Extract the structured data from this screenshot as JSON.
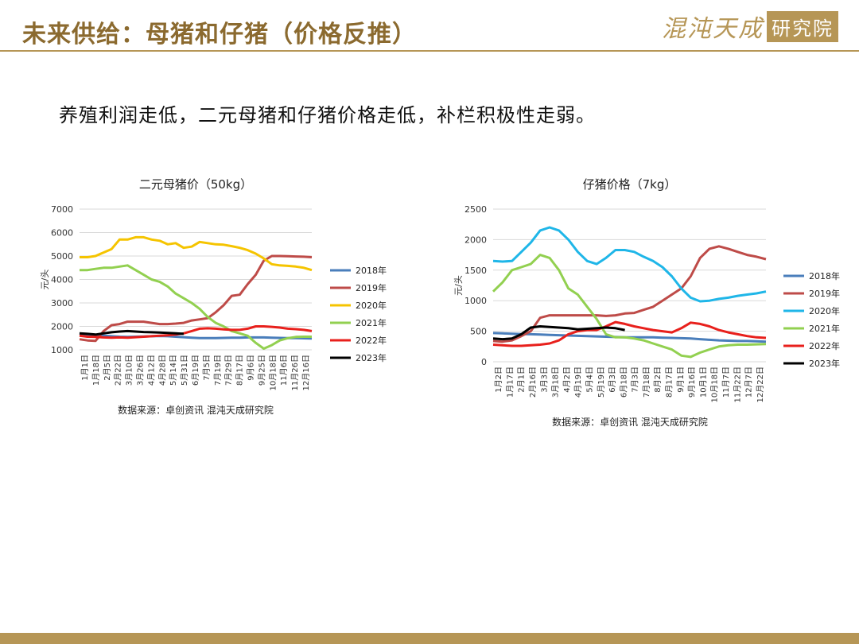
{
  "header": {
    "title": "未来供给：母猪和仔猪（价格反推）",
    "logo_text": "混沌天成",
    "logo_box_text": "研究院"
  },
  "subtitle": "养殖利润走低，二元母猪和仔猪价格走低，补栏积极性走弱。",
  "colors": {
    "accent": "#b69656",
    "title": "#8b6a2f",
    "s2018": "#4a7ebb",
    "s2019": "#be4b48",
    "s2020": "#f5c400",
    "s2021": "#92d050",
    "s2022": "#e8201c",
    "s2023": "#000000",
    "s2020_right": "#1fb6e8"
  },
  "chart_data": [
    {
      "type": "line",
      "title": "二元母猪价（50kg）",
      "ylabel": "元/头",
      "ylim": [
        1000,
        7000
      ],
      "yticks": [
        1000,
        2000,
        3000,
        4000,
        5000,
        6000,
        7000
      ],
      "xlabels": [
        "1月1日",
        "1月18日",
        "2月5日",
        "2月22日",
        "3月10日",
        "3月26日",
        "4月12日",
        "4月28日",
        "5月14日",
        "5月31日",
        "6月19日",
        "7月5日",
        "7月19日",
        "7月29日",
        "8月17日",
        "9月6日",
        "9月25日",
        "10月18日",
        "11月6日",
        "11月26日",
        "12月16日"
      ],
      "legend_position": "right",
      "source": "数据来源：卓创资讯 混沌天成研究院",
      "series": [
        {
          "name": "2018年",
          "color": "#4a7ebb",
          "values": [
            1700,
            1650,
            1620,
            1600,
            1580,
            1560,
            1550,
            1560,
            1570,
            1580,
            1590,
            1580,
            1560,
            1540,
            1520,
            1500,
            1500,
            1500,
            1510,
            1520,
            1520,
            1530,
            1530,
            1530,
            1520,
            1510,
            1500,
            1500,
            1490,
            1480
          ]
        },
        {
          "name": "2019年",
          "color": "#be4b48",
          "values": [
            1450,
            1400,
            1380,
            1800,
            2050,
            2100,
            2200,
            2200,
            2200,
            2150,
            2100,
            2100,
            2120,
            2150,
            2250,
            2300,
            2350,
            2600,
            2900,
            3300,
            3350,
            3800,
            4200,
            4800,
            5000,
            5000,
            4990,
            4980,
            4970,
            4950
          ]
        },
        {
          "name": "2020年",
          "color": "#f5c400",
          "values": [
            4950,
            4950,
            5000,
            5150,
            5300,
            5700,
            5700,
            5800,
            5800,
            5700,
            5650,
            5500,
            5550,
            5350,
            5400,
            5600,
            5550,
            5500,
            5480,
            5420,
            5350,
            5250,
            5100,
            4900,
            4650,
            4600,
            4580,
            4550,
            4500,
            4400
          ]
        },
        {
          "name": "2021年",
          "color": "#92d050",
          "values": [
            4400,
            4400,
            4450,
            4500,
            4500,
            4550,
            4600,
            4400,
            4200,
            4000,
            3900,
            3700,
            3400,
            3200,
            3000,
            2750,
            2400,
            2150,
            2000,
            1800,
            1700,
            1600,
            1300,
            1050,
            1200,
            1400,
            1500,
            1550,
            1560,
            1560
          ]
        },
        {
          "name": "2022年",
          "color": "#e8201c",
          "values": [
            1600,
            1560,
            1550,
            1530,
            1520,
            1530,
            1520,
            1540,
            1560,
            1580,
            1600,
            1620,
            1650,
            1700,
            1800,
            1900,
            1920,
            1900,
            1870,
            1850,
            1850,
            1900,
            2000,
            2000,
            1980,
            1950,
            1900,
            1880,
            1850,
            1800
          ]
        },
        {
          "name": "2023年",
          "color": "#000000",
          "values": [
            1700,
            1680,
            1650,
            1700,
            1750,
            1780,
            1800,
            1780,
            1760,
            1750,
            1740,
            1720,
            1700,
            1680
          ]
        }
      ]
    },
    {
      "type": "line",
      "title": "仔猪价格（7kg）",
      "ylabel": "元/头",
      "ylim": [
        0,
        2500
      ],
      "yticks": [
        0,
        500,
        1000,
        1500,
        2000,
        2500
      ],
      "xlabels": [
        "1月2日",
        "1月17日",
        "2月1日",
        "2月16日",
        "3月3日",
        "3月18日",
        "4月2日",
        "4月19日",
        "5月4日",
        "5月19日",
        "6月3日",
        "6月18日",
        "7月3日",
        "7月18日",
        "8月2日",
        "8月17日",
        "9月1日",
        "9月16日",
        "10月1日",
        "10月18日",
        "11月7日",
        "11月22日",
        "12月7日",
        "12月22日"
      ],
      "legend_position": "right",
      "source": "数据来源：卓创资讯 混沌天成研究院",
      "series": [
        {
          "name": "2018年",
          "color": "#4a7ebb",
          "values": [
            470,
            465,
            460,
            455,
            450,
            445,
            440,
            435,
            430,
            425,
            420,
            415,
            410,
            405,
            400,
            400,
            400,
            400,
            395,
            390,
            385,
            380,
            370,
            360,
            350,
            345,
            340,
            340,
            335,
            330
          ]
        },
        {
          "name": "2019年",
          "color": "#be4b48",
          "values": [
            340,
            330,
            350,
            420,
            500,
            720,
            760,
            760,
            760,
            760,
            760,
            760,
            750,
            760,
            790,
            800,
            850,
            900,
            1000,
            1100,
            1200,
            1400,
            1700,
            1850,
            1890,
            1850,
            1800,
            1750,
            1720,
            1680
          ]
        },
        {
          "name": "2020年",
          "color": "#1fb6e8",
          "values": [
            1650,
            1640,
            1650,
            1800,
            1950,
            2150,
            2200,
            2150,
            2000,
            1800,
            1650,
            1600,
            1700,
            1830,
            1830,
            1800,
            1720,
            1650,
            1550,
            1400,
            1200,
            1050,
            990,
            1000,
            1030,
            1050,
            1080,
            1100,
            1120,
            1150
          ]
        },
        {
          "name": "2021年",
          "color": "#92d050",
          "values": [
            1150,
            1300,
            1500,
            1550,
            1600,
            1750,
            1700,
            1500,
            1200,
            1100,
            900,
            700,
            450,
            400,
            400,
            380,
            350,
            300,
            250,
            200,
            100,
            80,
            150,
            200,
            250,
            270,
            280,
            280,
            285,
            290
          ]
        },
        {
          "name": "2022年",
          "color": "#e8201c",
          "values": [
            280,
            270,
            260,
            260,
            270,
            280,
            300,
            350,
            450,
            500,
            520,
            520,
            580,
            650,
            620,
            580,
            550,
            520,
            500,
            480,
            550,
            640,
            620,
            580,
            520,
            480,
            450,
            420,
            400,
            390
          ]
        },
        {
          "name": "2023年",
          "color": "#000000",
          "values": [
            380,
            370,
            380,
            450,
            560,
            580,
            570,
            560,
            550,
            530,
            540,
            550,
            560,
            550,
            520
          ]
        }
      ]
    }
  ]
}
